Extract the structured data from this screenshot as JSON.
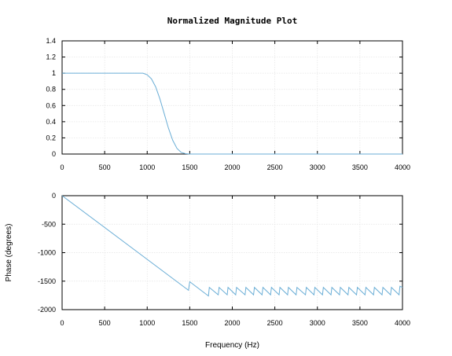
{
  "chart_data": [
    {
      "type": "line",
      "title": "Normalized Magnitude Plot",
      "xlabel": "",
      "ylabel": "",
      "xlim": [
        0,
        4000
      ],
      "ylim": [
        0,
        1.4
      ],
      "grid": true,
      "xticks": [
        0,
        500,
        1000,
        1500,
        2000,
        2500,
        3000,
        3500,
        4000
      ],
      "yticks": [
        0,
        0.2,
        0.4,
        0.6,
        0.8,
        1,
        1.2,
        1.4
      ],
      "xtick_labels": [
        "0",
        "500",
        "1000",
        "1500",
        "2000",
        "2500",
        "3000",
        "3500",
        "4000"
      ],
      "ytick_labels": [
        "0",
        "0.2",
        "0.4",
        "0.6",
        "0.8",
        "1",
        "1.2",
        "1.4"
      ],
      "series": [
        {
          "color": "#6baed6",
          "x": [
            0,
            200,
            400,
            600,
            800,
            900,
            950,
            1000,
            1050,
            1100,
            1150,
            1200,
            1250,
            1300,
            1350,
            1400,
            1450,
            1500,
            1600,
            2000,
            2500,
            3000,
            3500,
            4000
          ],
          "y": [
            1.0,
            1.0,
            1.0,
            1.0,
            1.0,
            1.0,
            1.0,
            0.98,
            0.93,
            0.83,
            0.68,
            0.5,
            0.32,
            0.17,
            0.07,
            0.02,
            0.005,
            0.0,
            0.0,
            0.0,
            0.0,
            0.0,
            0.0,
            0.0
          ]
        }
      ]
    },
    {
      "type": "line",
      "title": "",
      "xlabel": "Frequency (Hz)",
      "ylabel": "Phase (degrees)",
      "xlim": [
        0,
        4000
      ],
      "ylim": [
        -2000,
        0
      ],
      "grid": true,
      "xticks": [
        0,
        500,
        1000,
        1500,
        2000,
        2500,
        3000,
        3500,
        4000
      ],
      "yticks": [
        -2000,
        -1500,
        -1000,
        -500,
        0
      ],
      "xtick_labels": [
        "0",
        "500",
        "1000",
        "1500",
        "2000",
        "2500",
        "3000",
        "3500",
        "4000"
      ],
      "ytick_labels": [
        "-2000",
        "-1500",
        "-1000",
        "-500",
        "0"
      ],
      "series": [
        {
          "color": "#6baed6",
          "x": [
            0,
            1485,
            1500,
            1720,
            1730,
            1835,
            1845,
            1940,
            1950,
            2040,
            2050,
            2150,
            2160,
            2250,
            2260,
            2350,
            2360,
            2450,
            2460,
            2550,
            2560,
            2650,
            2660,
            2750,
            2760,
            2860,
            2870,
            2960,
            2970,
            3060,
            3070,
            3160,
            3170,
            3260,
            3270,
            3360,
            3370,
            3460,
            3470,
            3560,
            3570,
            3660,
            3670,
            3760,
            3770,
            3860,
            3870,
            3960,
            3970,
            4000
          ],
          "y": [
            0,
            -1660,
            -1510,
            -1760,
            -1610,
            -1740,
            -1610,
            -1740,
            -1610,
            -1740,
            -1610,
            -1740,
            -1610,
            -1740,
            -1610,
            -1740,
            -1610,
            -1740,
            -1610,
            -1740,
            -1610,
            -1740,
            -1610,
            -1740,
            -1610,
            -1740,
            -1610,
            -1740,
            -1610,
            -1740,
            -1610,
            -1740,
            -1610,
            -1740,
            -1610,
            -1740,
            -1610,
            -1740,
            -1610,
            -1740,
            -1610,
            -1740,
            -1610,
            -1740,
            -1610,
            -1740,
            -1610,
            -1740,
            -1590,
            -1610
          ]
        }
      ]
    }
  ]
}
